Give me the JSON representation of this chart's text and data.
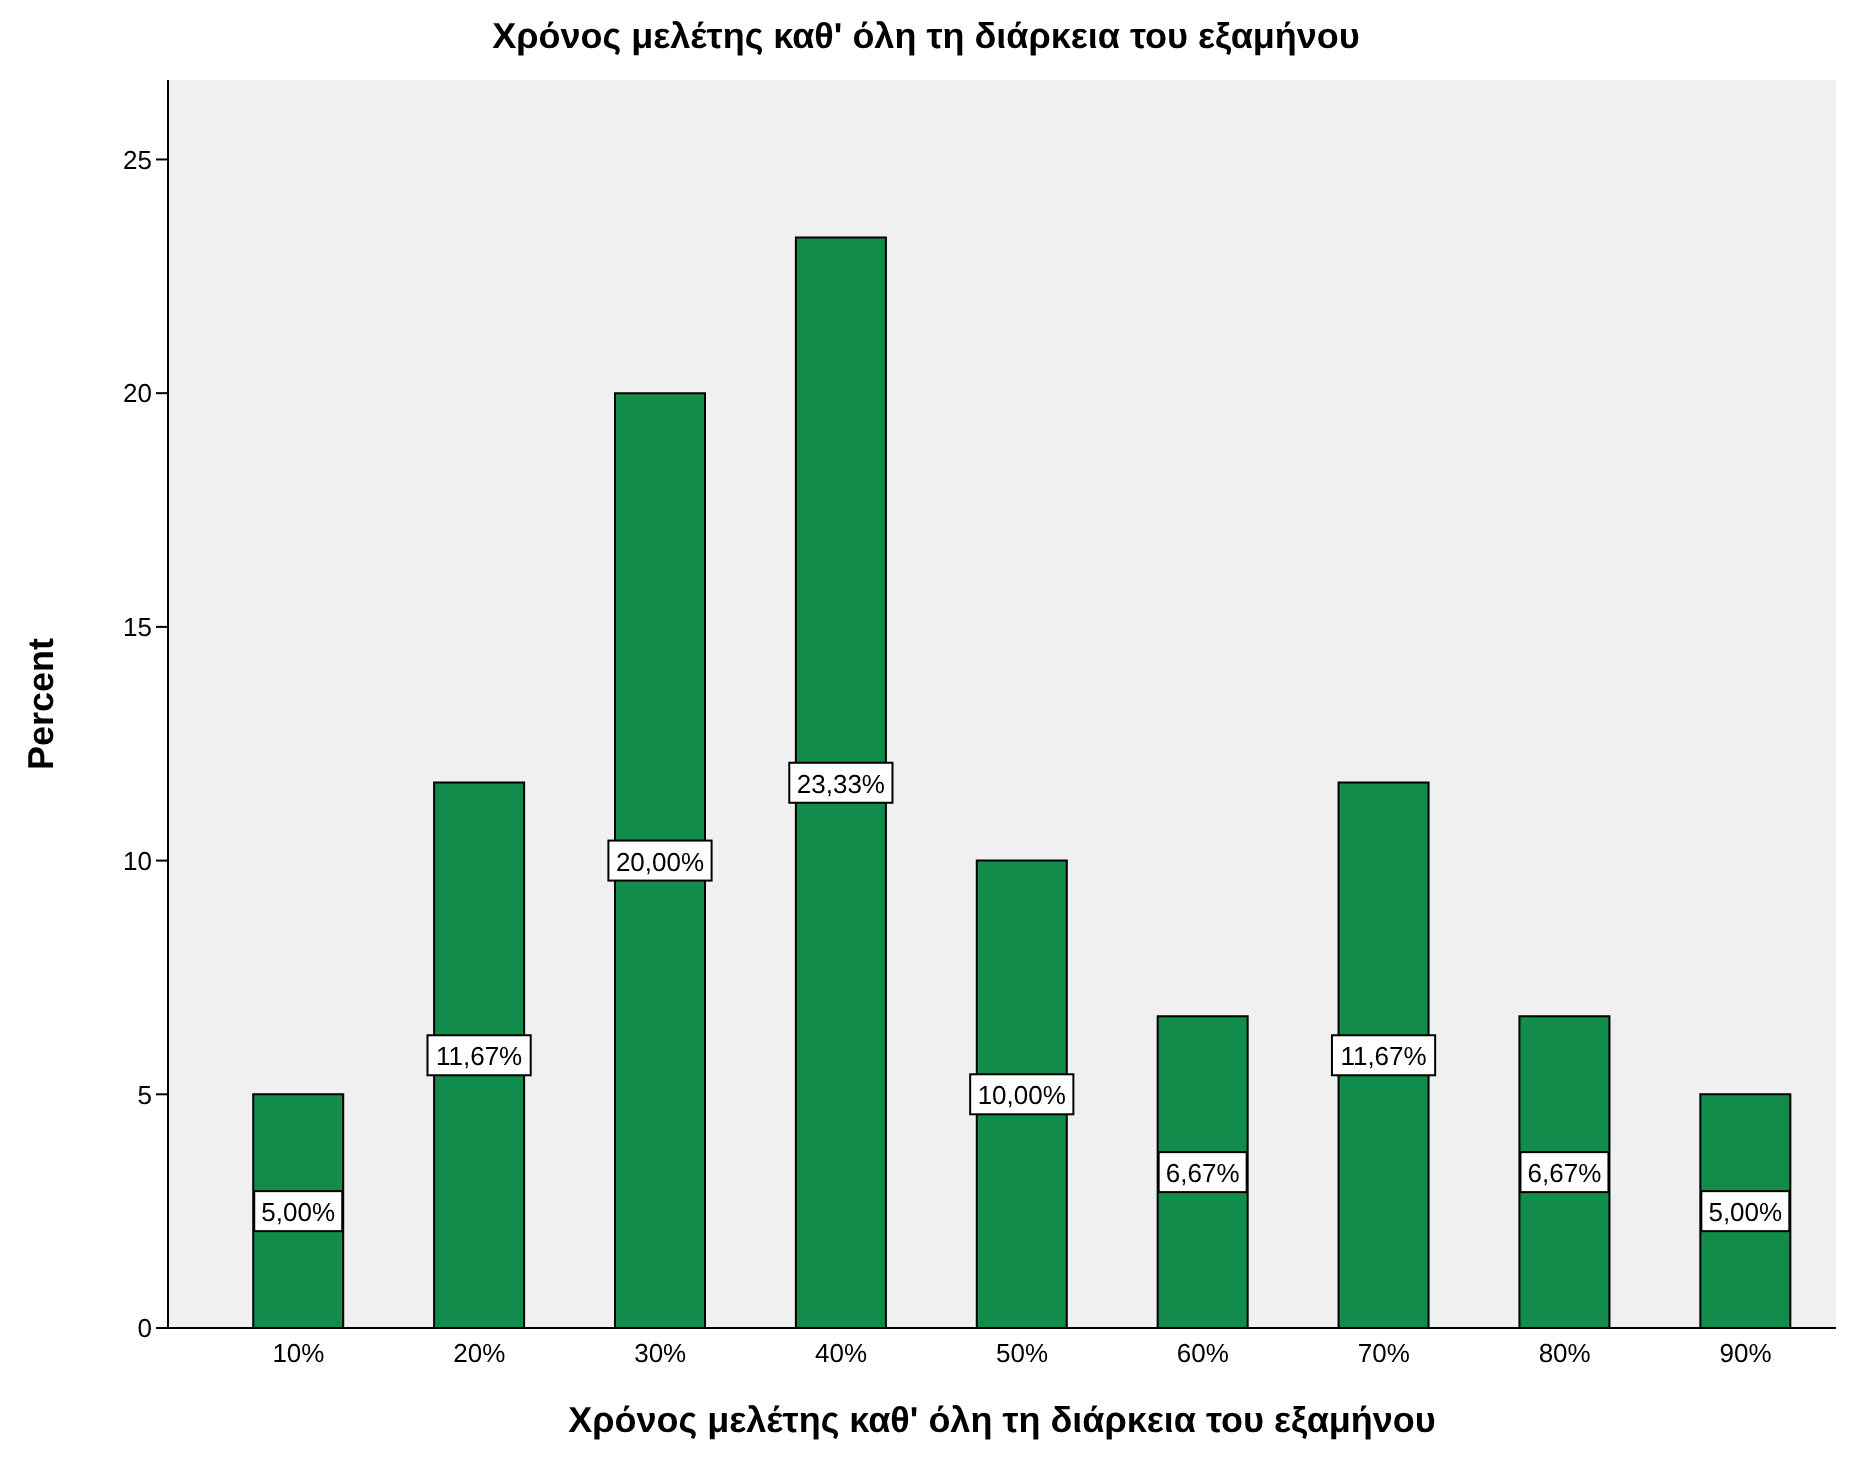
{
  "chart_data": {
    "type": "bar",
    "title": "Χρόνος μελέτης καθ' όλη τη διάρκεια του εξαμήνου",
    "xlabel": "Χρόνος μελέτης καθ' όλη τη διάρκεια του εξαμήνου",
    "ylabel": "Percent",
    "categories": [
      "10%",
      "20%",
      "30%",
      "40%",
      "50%",
      "60%",
      "70%",
      "80%",
      "90%"
    ],
    "values": [
      5,
      11.67,
      20,
      23.33,
      10,
      6.67,
      11.67,
      6.67,
      5
    ],
    "value_labels": [
      "5,00%",
      "11,67%",
      "20,00%",
      "23,33%",
      "10,00%",
      "6,67%",
      "11,67%",
      "6,67%",
      "5,00%"
    ],
    "color": "#128c4a",
    "ylim": [
      0,
      26.7
    ],
    "yticks": [
      0,
      5,
      10,
      15,
      20,
      25
    ],
    "grid": false,
    "legend": false
  }
}
